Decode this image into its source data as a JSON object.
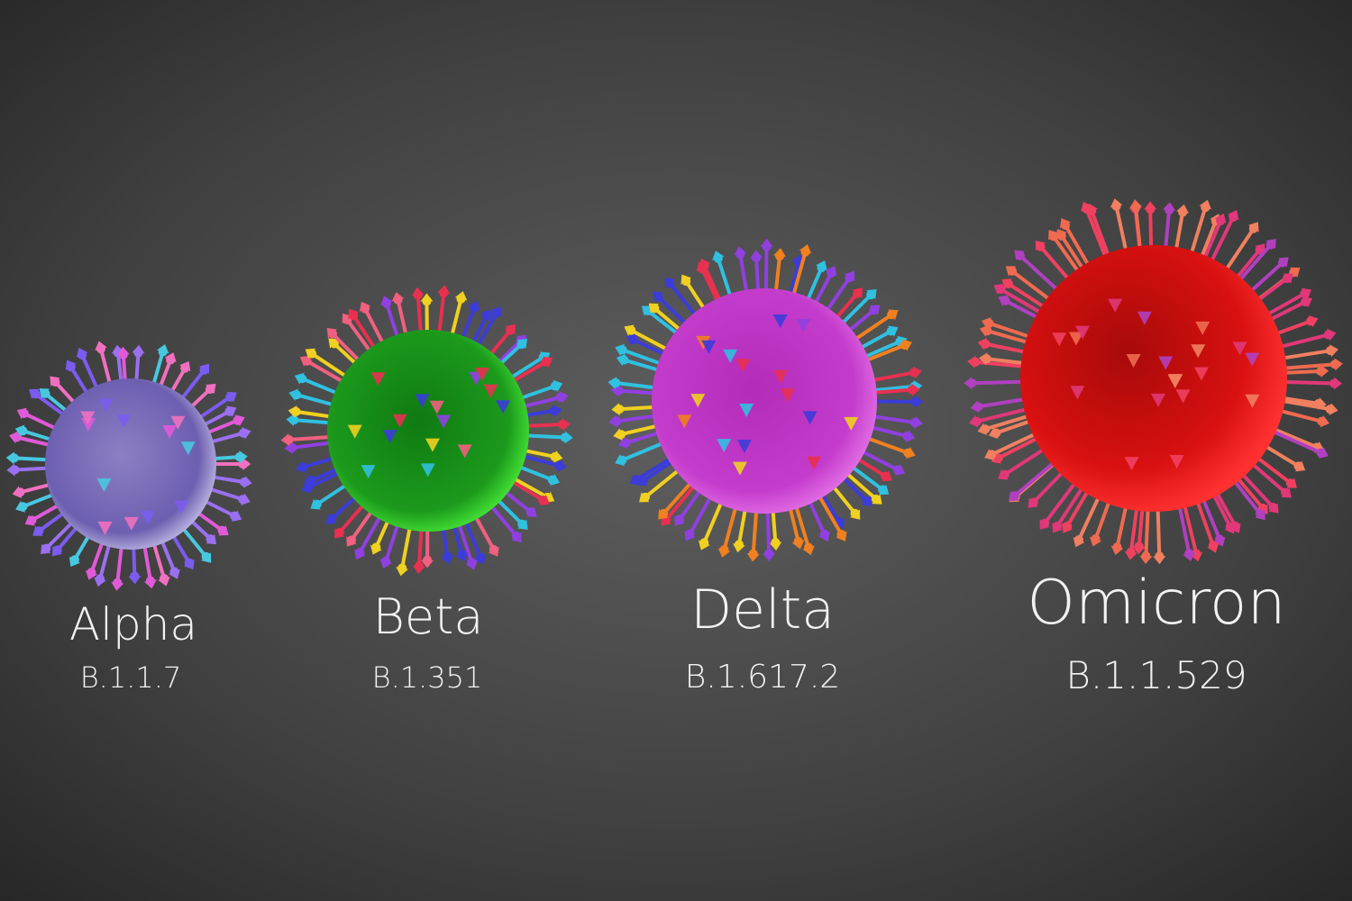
{
  "variants": [
    {
      "name": "Alpha",
      "lineage": "B.1.1.7"
    },
    {
      "name": "Beta",
      "lineage": "B.1.351"
    },
    {
      "name": "Delta",
      "lineage": "B.1.617.2"
    },
    {
      "name": "Omicron",
      "lineage": "B.1.1.529"
    }
  ]
}
